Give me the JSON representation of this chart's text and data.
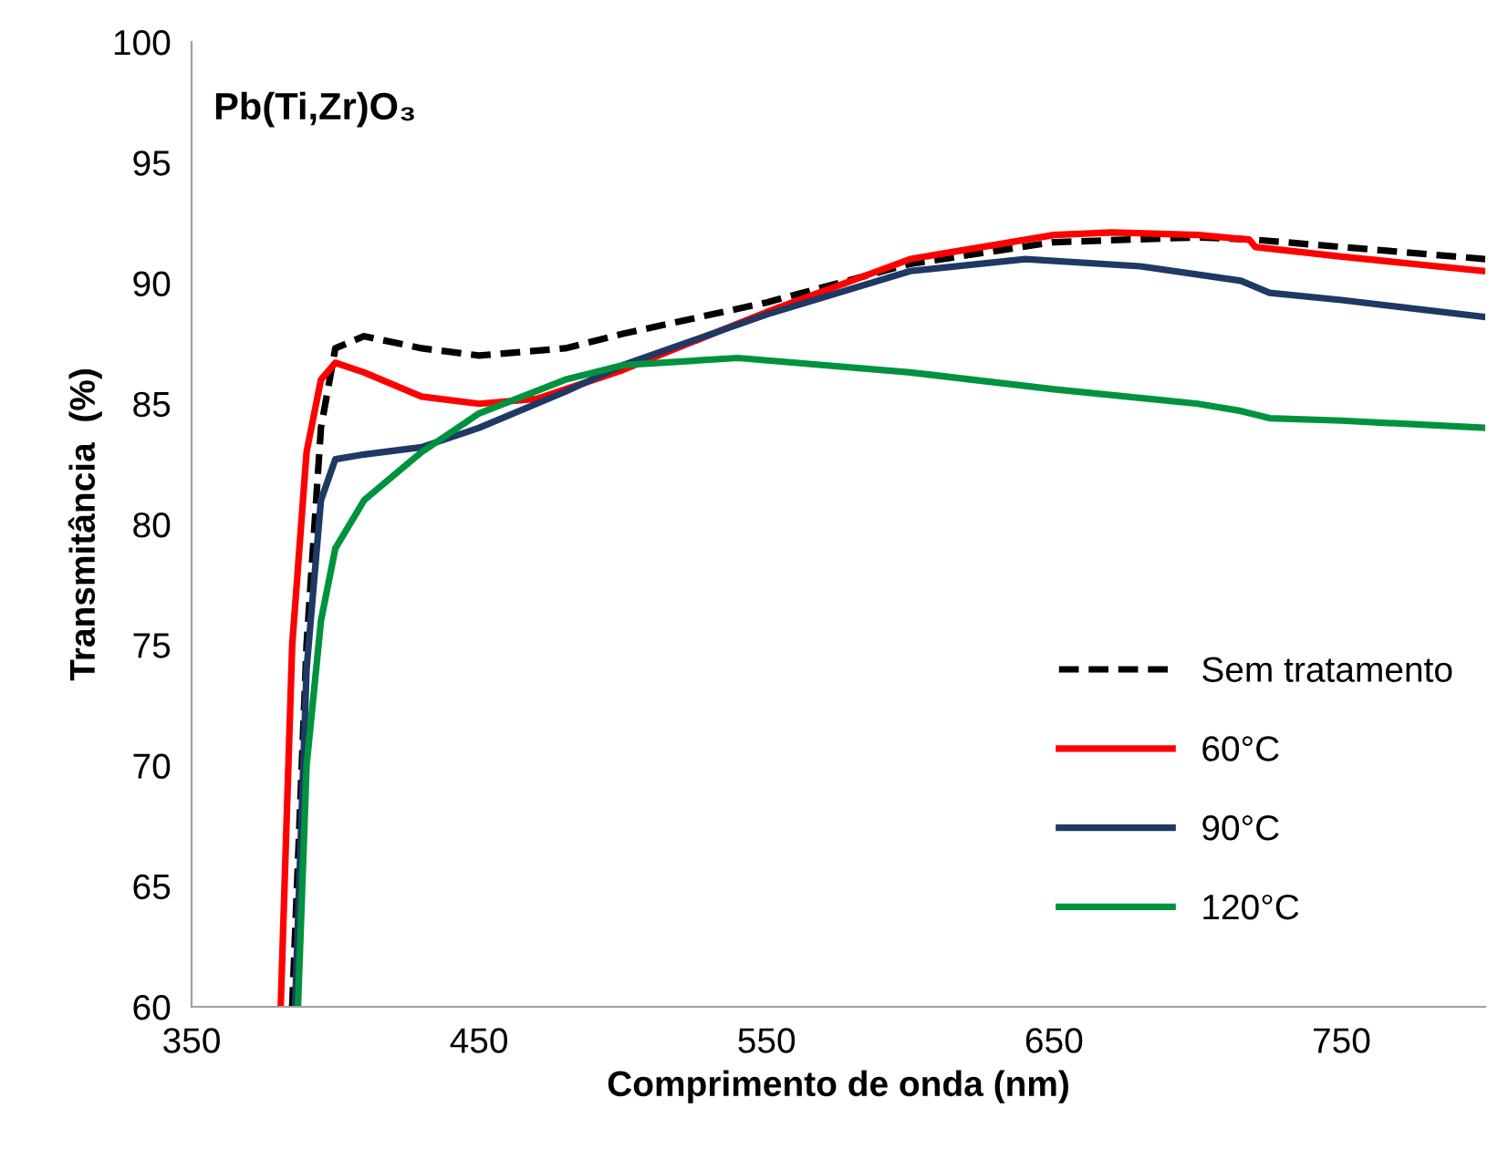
{
  "chart_data": {
    "type": "line",
    "title": "Pb(Ti,Zr)O₃",
    "xlabel": "Comprimento de onda (nm)",
    "ylabel": "Transmitância  (%)",
    "xlim": [
      350,
      800
    ],
    "xticks": [
      350,
      450,
      550,
      650,
      750
    ],
    "ylim": [
      60,
      100
    ],
    "yticks": [
      60,
      65,
      70,
      75,
      80,
      85,
      90,
      95,
      100
    ],
    "grid": false,
    "legend": "bottom right",
    "marker": "none",
    "series": [
      {
        "name": "Sem tratamento",
        "color": "#000000",
        "line_style": "dashed",
        "x": [
          385,
          390,
          395,
          400,
          410,
          430,
          450,
          480,
          500,
          550,
          600,
          650,
          700,
          720,
          750,
          800
        ],
        "values": [
          60,
          75,
          84,
          87.3,
          87.8,
          87.3,
          87.0,
          87.3,
          87.9,
          89.2,
          90.8,
          91.7,
          91.9,
          91.8,
          91.5,
          91.0
        ]
      },
      {
        "name": "60°C",
        "color": "#ff0000",
        "line_style": "solid",
        "x": [
          381,
          385,
          390,
          395,
          400,
          410,
          430,
          450,
          470,
          500,
          550,
          600,
          650,
          670,
          700,
          718,
          720,
          750,
          800
        ],
        "values": [
          60,
          75,
          83,
          86,
          86.7,
          86.3,
          85.3,
          85.0,
          85.2,
          86.4,
          88.8,
          91.0,
          92.0,
          92.1,
          92.0,
          91.8,
          91.5,
          91.1,
          90.5
        ]
      },
      {
        "name": "90°C",
        "color": "#1f3864",
        "line_style": "solid",
        "x": [
          386,
          390,
          395,
          400,
          410,
          430,
          450,
          480,
          500,
          550,
          600,
          640,
          680,
          715,
          725,
          750,
          800
        ],
        "values": [
          60,
          74,
          81,
          82.7,
          82.9,
          83.2,
          84.0,
          85.5,
          86.6,
          88.7,
          90.5,
          91.0,
          90.7,
          90.1,
          89.6,
          89.3,
          88.6
        ]
      },
      {
        "name": "120°C",
        "color": "#00923f",
        "line_style": "solid",
        "x": [
          387,
          390,
          395,
          400,
          410,
          430,
          450,
          480,
          500,
          540,
          600,
          650,
          700,
          715,
          725,
          750,
          800
        ],
        "values": [
          60,
          70,
          76,
          79,
          81,
          83,
          84.6,
          86.0,
          86.6,
          86.9,
          86.3,
          85.6,
          85.0,
          84.7,
          84.4,
          84.3,
          84.0
        ]
      }
    ]
  }
}
